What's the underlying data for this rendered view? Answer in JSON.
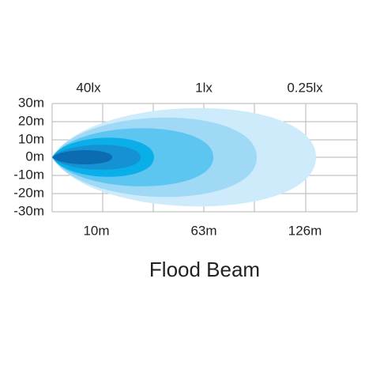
{
  "y_labels": [
    "30m",
    "20m",
    "10m",
    "0m",
    "-10m",
    "-20m",
    "-30m"
  ],
  "lux_labels": [
    "40lx",
    "1lx",
    "0.25lx"
  ],
  "distance_labels": [
    "10m",
    "63m",
    "126m"
  ],
  "title": "Flood Beam"
}
